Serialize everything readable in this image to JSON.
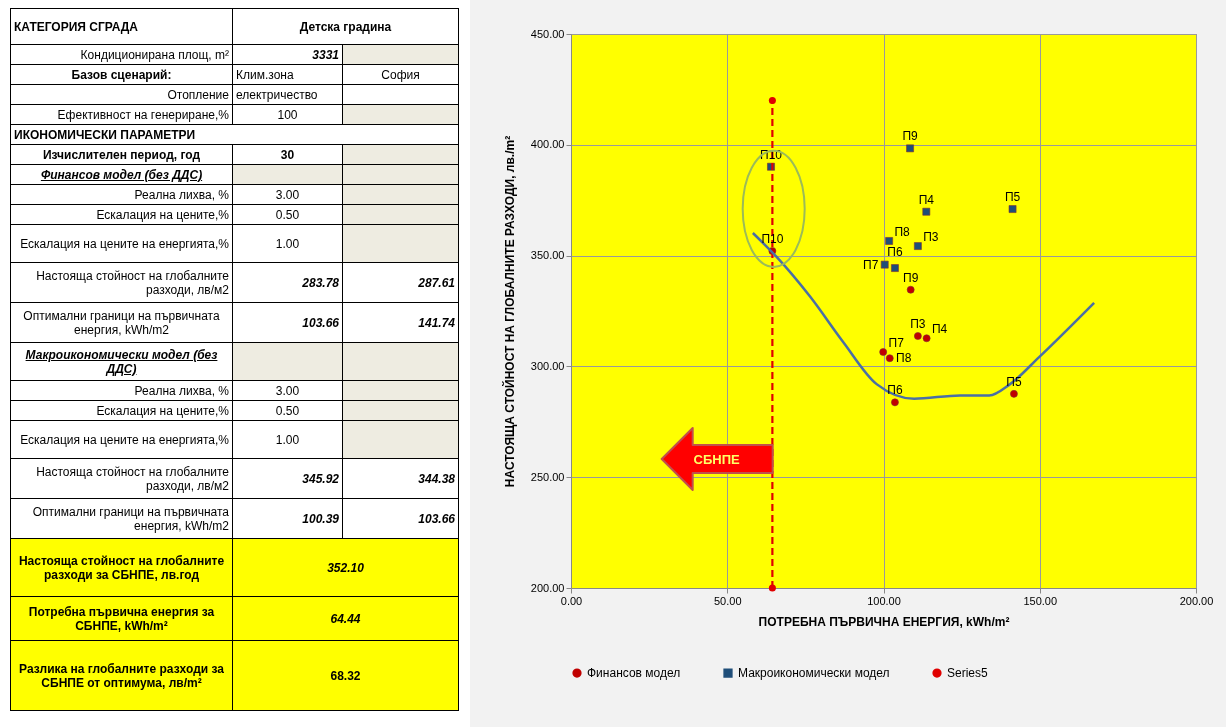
{
  "chart_data": [
    {
      "type": "other",
      "annotations": [
        "КАТЕГОРИЯ  СГРАДА",
        "Детска градина",
        "Кондиционирана площ, m²",
        "3331",
        "Базов сценарий:",
        "Клим.зона",
        "София",
        "Отопление",
        "електричество",
        "Ефективност на генериране,%",
        "100",
        "ИКОНОМИЧЕСКИ ПАРАМЕТРИ",
        "Изчислителен период, год",
        "30",
        "Финансов модел (без ДДС)",
        "Реална лихва, %",
        "3.00",
        "Ескалация на цените,%",
        "0.50",
        "Ескалация на цените на енергията,%",
        "1.00",
        "Настояща стойност на глобалните разходи, лв/м2",
        "283.78",
        "287.61",
        "Оптимални граници на първичната енергия, kWh/m2",
        "103.66",
        "141.74",
        "Макроикономически модел (без ДДС)",
        "Реална лихва, %",
        "3.00",
        "Ескалация на цените,%",
        "0.50",
        "Ескалация на цените на енергията,%",
        "1.00",
        "Настояща стойност на глобалните разходи, лв/м2",
        "345.92",
        "344.38",
        "Оптимални граници на първичната енергия, kWh/m2",
        "100.39",
        "103.66",
        "Настояща стойност на глобалните разходи за СБНПЕ, лв.год",
        "352.10",
        "Потребна първична енергия за СБНПЕ, kWh/m²",
        "64.44",
        "Разлика на глобалните разходи за СБНПЕ от оптимума, лв/m²",
        "68.32"
      ]
    },
    {
      "type": "scatter",
      "xlabel": "ПОТРЕБНА ПЪРВИЧНА ЕНЕРГИЯ, kWh/m²",
      "ylabel": "НАСТОЯЩА СТОЙНОСТ НА ГЛОБАЛНИТЕ РАЗХОДИ, лв./m²",
      "xlim": [
        0,
        200
      ],
      "xticks": [
        {
          "value": 0,
          "label": "0.00"
        },
        {
          "value": 50,
          "label": "50.00"
        },
        {
          "value": 100,
          "label": "100.00"
        },
        {
          "value": 150,
          "label": "150.00"
        },
        {
          "value": 200,
          "label": "200.00"
        }
      ],
      "ylim": [
        200,
        450
      ],
      "yticks": [
        {
          "value": 200,
          "label": "200.00"
        },
        {
          "value": 250,
          "label": "250.00"
        },
        {
          "value": 300,
          "label": "300.00"
        },
        {
          "value": 350,
          "label": "350.00"
        },
        {
          "value": 400,
          "label": "400.00"
        },
        {
          "value": 450,
          "label": "450.00"
        }
      ],
      "grid": true,
      "legend": "bottom",
      "series": [
        {
          "type": "scatter",
          "name": "Финансов модел",
          "color": "#c00000",
          "marker": "circle",
          "x": [
            64.44,
            108.7,
            111.0,
            113.8,
            99.9,
            102.0,
            103.66,
            141.74
          ],
          "values": [
            352.1,
            334.6,
            313.7,
            312.7,
            306.5,
            303.7,
            283.78,
            287.61
          ]
        },
        {
          "type": "scatter",
          "name": "Макроикономически модел",
          "color": "#1f4e79",
          "marker": "square",
          "x": [
            64.0,
            108.5,
            113.7,
            141.3,
            101.8,
            111.0,
            100.39,
            103.66
          ],
          "values": [
            390.1,
            398.4,
            369.8,
            371.0,
            356.6,
            354.3,
            345.92,
            344.38
          ]
        },
        {
          "type": "line",
          "name": "Series5",
          "color": "#e00000",
          "marker": "circle",
          "line_style": "dashed",
          "x": [
            64.44,
            64.44
          ],
          "values": [
            200,
            420
          ]
        },
        {
          "type": "line",
          "color": "#4a6fa5",
          "marker": "none",
          "line_style": "solid",
          "x": [
            58.2,
            65.8,
            76.5,
            87.2,
            97.8,
            109.8,
            124.5,
            133.8,
            140.5,
            149.8,
            167.4
          ],
          "values": [
            360.2,
            349.4,
            331.5,
            310.8,
            292.0,
            285.4,
            286.9,
            286.9,
            292.0,
            304.2,
            328.7
          ]
        }
      ],
      "annotations": [
        {
          "text": "П10",
          "x": 64.44,
          "y": 352.1
        },
        {
          "text": "П9",
          "x": 108.7,
          "y": 334.6
        },
        {
          "text": "П3",
          "x": 111.0,
          "y": 313.7
        },
        {
          "text": "П4",
          "x": 113.8,
          "y": 312.7
        },
        {
          "text": "П7",
          "x": 99.9,
          "y": 306.5
        },
        {
          "text": "П8",
          "x": 102.0,
          "y": 303.7
        },
        {
          "text": "П6",
          "x": 103.66,
          "y": 283.78
        },
        {
          "text": "П5",
          "x": 141.74,
          "y": 287.61
        },
        {
          "text": "П10",
          "x": 64.0,
          "y": 390.1
        },
        {
          "text": "П9",
          "x": 108.5,
          "y": 398.4
        },
        {
          "text": "П4",
          "x": 113.7,
          "y": 369.8
        },
        {
          "text": "П5",
          "x": 141.3,
          "y": 371.0
        },
        {
          "text": "П8",
          "x": 101.8,
          "y": 356.6
        },
        {
          "text": "П3",
          "x": 111.0,
          "y": 354.3
        },
        {
          "text": "П7",
          "x": 100.39,
          "y": 345.92
        },
        {
          "text": "П6",
          "x": 103.66,
          "y": 344.38
        },
        "СБНПЕ"
      ]
    }
  ]
}
